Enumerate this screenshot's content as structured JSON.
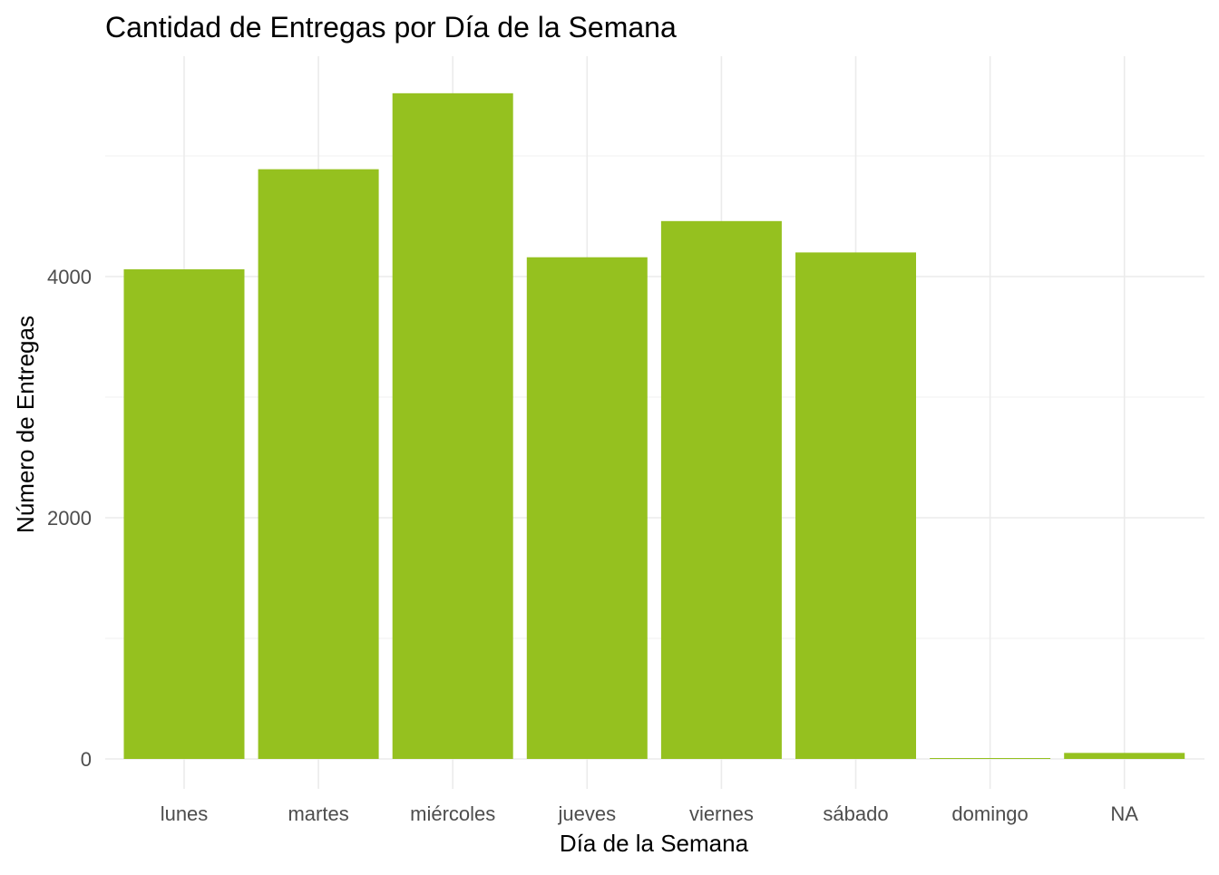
{
  "chart_data": {
    "type": "bar",
    "title": "Cantidad de Entregas por Día de la Semana",
    "xlabel": "Día de la Semana",
    "ylabel": "Número de Entregas",
    "categories": [
      "lunes",
      "martes",
      "miércoles",
      "jueves",
      "viernes",
      "sábado",
      "domingo",
      "NA"
    ],
    "values": [
      4060,
      4890,
      5520,
      4160,
      4460,
      4200,
      5,
      50
    ],
    "ylim": [
      0,
      5850
    ],
    "y_ticks": [
      0,
      2000,
      4000
    ],
    "y_tick_labels": [
      "0",
      "2000",
      "4000"
    ],
    "y_minor_ticks": [
      1000,
      3000,
      5000
    ],
    "grid": true,
    "bar_color": "#95C11F",
    "theme": "minimal"
  }
}
